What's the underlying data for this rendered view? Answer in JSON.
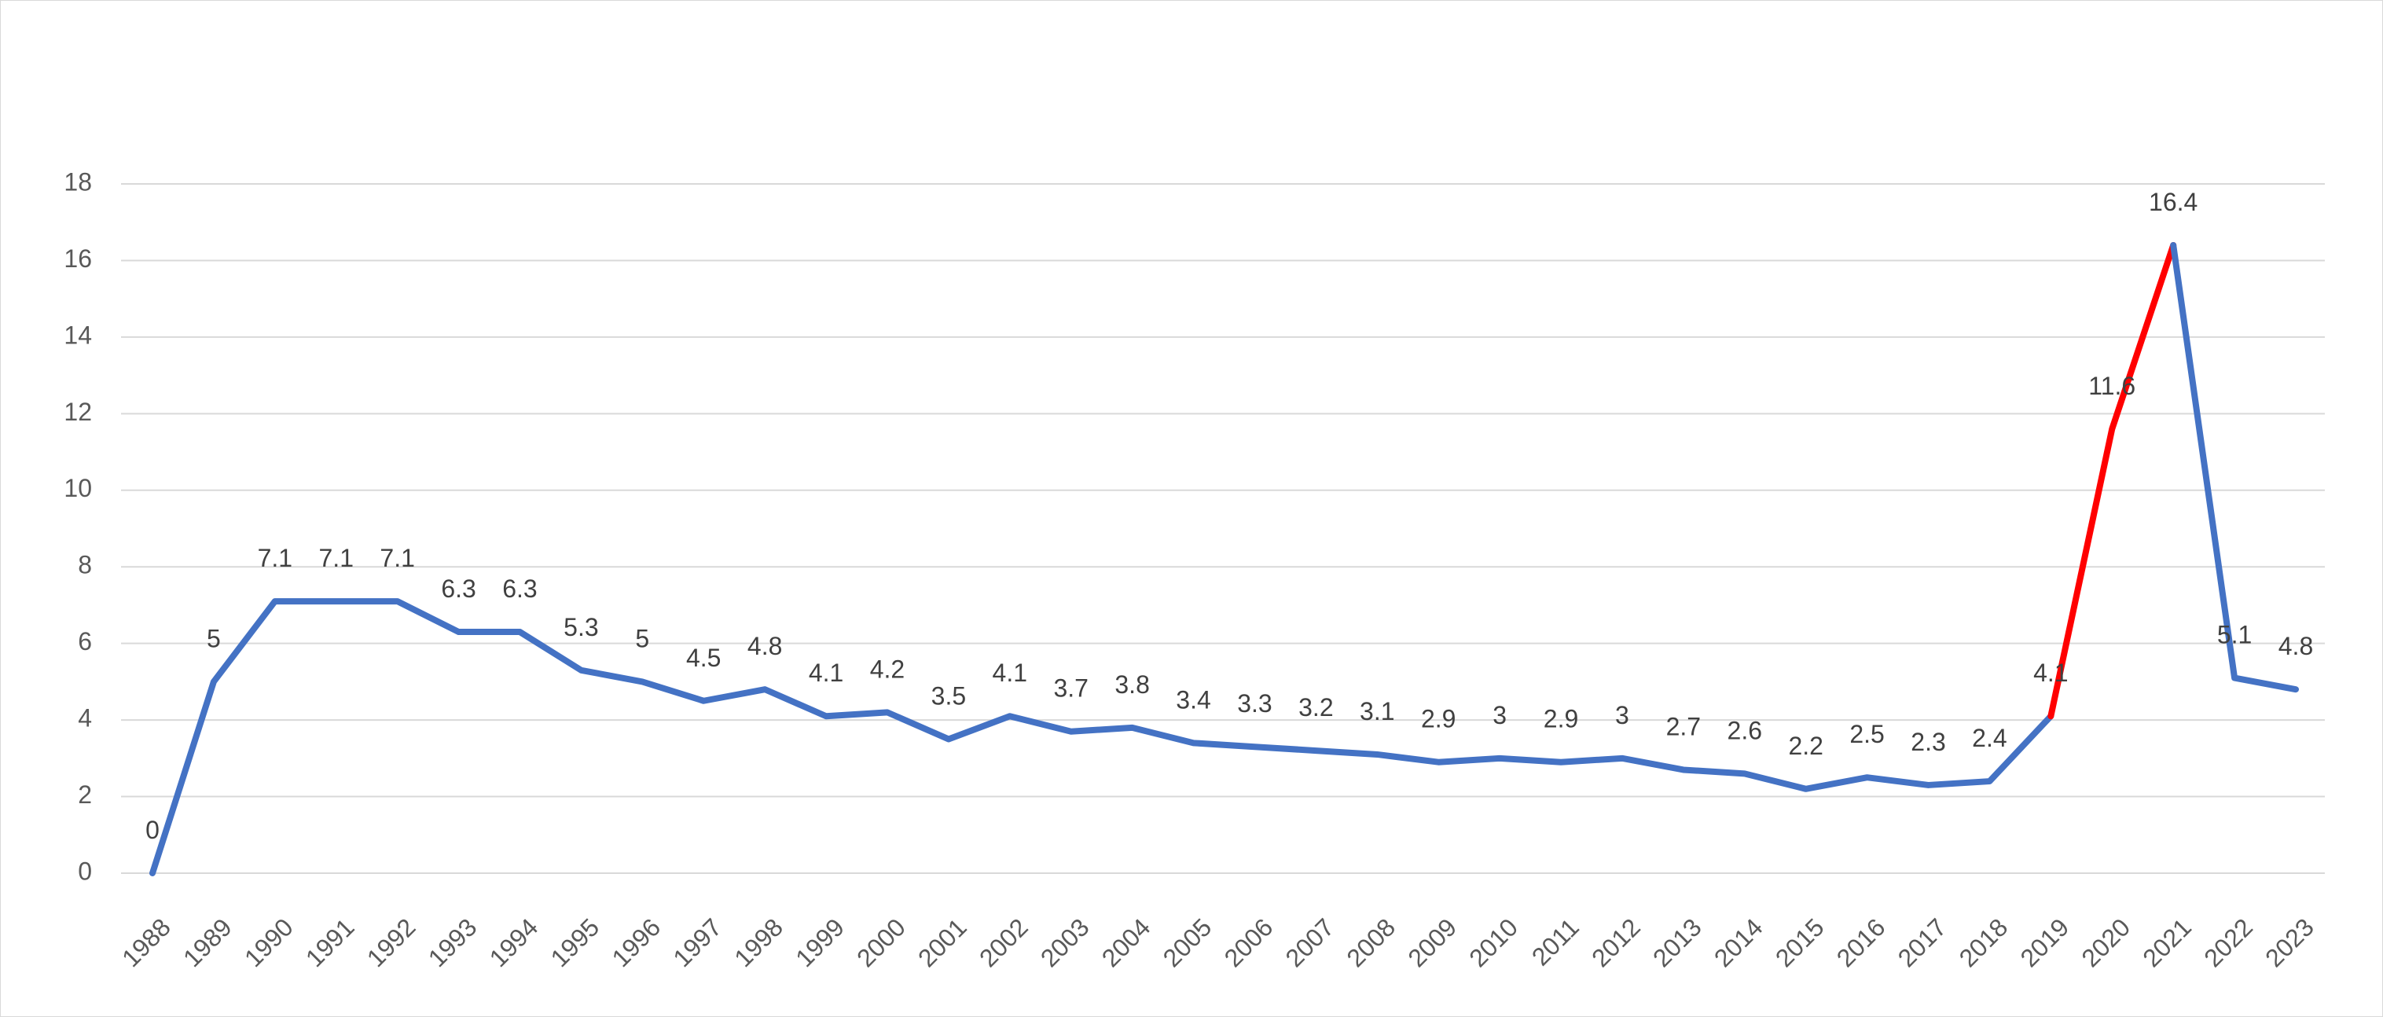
{
  "chart_data": {
    "type": "line",
    "title": "",
    "xlabel": "",
    "ylabel": "",
    "ylim": [
      0,
      18
    ],
    "y_ticks": [
      "0",
      "2",
      "4",
      "6",
      "8",
      "10",
      "12",
      "14",
      "16",
      "18"
    ],
    "grid": true,
    "legend": "none",
    "x": [
      "1988",
      "1989",
      "1990",
      "1991",
      "1992",
      "1993",
      "1994",
      "1995",
      "1996",
      "1997",
      "1998",
      "1999",
      "2000",
      "2001",
      "2002",
      "2003",
      "2004",
      "2005",
      "2006",
      "2007",
      "2008",
      "2009",
      "2010",
      "2011",
      "2012",
      "2013",
      "2014",
      "2015",
      "2016",
      "2017",
      "2018",
      "2019",
      "2020",
      "2021",
      "2022",
      "2023"
    ],
    "series": [
      {
        "values": [
          0,
          5,
          7.1,
          7.1,
          7.1,
          6.3,
          6.3,
          5.3,
          5,
          4.5,
          4.8,
          4.1,
          4.2,
          3.5,
          4.1,
          3.7,
          3.8,
          3.4,
          3.3,
          3.2,
          3.1,
          2.9,
          3,
          2.9,
          3,
          2.7,
          2.6,
          2.2,
          2.5,
          2.3,
          2.4,
          4.1,
          11.6,
          16.4,
          5.1,
          4.8
        ],
        "data_labels": [
          "0",
          "5",
          "7.1",
          "7.1",
          "7.1",
          "6.3",
          "6.3",
          "5.3",
          "5",
          "4.5",
          "4.8",
          "4.1",
          "4.2",
          "3.5",
          "4.1",
          "3.7",
          "3.8",
          "3.4",
          "3.3",
          "3.2",
          "3.1",
          "2.9",
          "3",
          "2.9",
          "3",
          "2.7",
          "2.6",
          "2.2",
          "2.5",
          "2.3",
          "2.4",
          "4.1",
          "11.6",
          "16.4",
          "5.1",
          "4.8"
        ],
        "color": "#4472C4",
        "highlight": {
          "from": "2019",
          "to": "2021",
          "color": "#FF0000"
        }
      }
    ]
  }
}
